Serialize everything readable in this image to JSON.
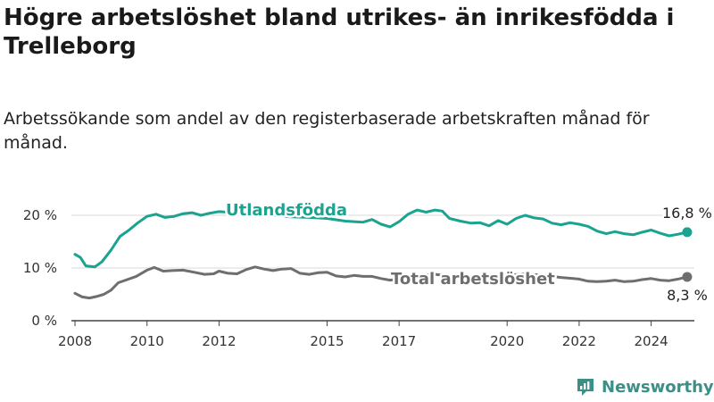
{
  "brand": {
    "name": "Newsworthy",
    "logo_icon": "newsworthy-logo-icon"
  },
  "chart_data": {
    "type": "line",
    "title": "Högre arbetslöshet bland utrikes- än inrikesfödda i Trelleborg",
    "subtitle": "Arbetssökande som andel av den registerbaserade arbetskraften månad för månad.",
    "x_ticks": [
      2008,
      2010,
      2012,
      2015,
      2017,
      2020,
      2022,
      2024
    ],
    "y_ticks": [
      {
        "value": 0,
        "label": "0 %"
      },
      {
        "value": 10,
        "label": "10 %"
      },
      {
        "value": 20,
        "label": "20 %"
      }
    ],
    "xlim": [
      2007.9,
      2025.2
    ],
    "ylim": [
      0,
      20
    ],
    "grid": "horizontal",
    "series": [
      {
        "name": "Utlandsfödda",
        "color": "#1aa38f",
        "end_label": "16,8 %",
        "points": [
          [
            2008.0,
            12.6
          ],
          [
            2008.15,
            12.0
          ],
          [
            2008.3,
            10.4
          ],
          [
            2008.55,
            10.2
          ],
          [
            2008.75,
            11.2
          ],
          [
            2009.0,
            13.4
          ],
          [
            2009.25,
            16.0
          ],
          [
            2009.5,
            17.2
          ],
          [
            2009.75,
            18.6
          ],
          [
            2010.0,
            19.8
          ],
          [
            2010.25,
            20.2
          ],
          [
            2010.5,
            19.6
          ],
          [
            2010.75,
            19.8
          ],
          [
            2011.0,
            20.3
          ],
          [
            2011.25,
            20.5
          ],
          [
            2011.5,
            20.0
          ],
          [
            2011.75,
            20.4
          ],
          [
            2012.0,
            20.7
          ],
          [
            2012.5,
            20.5
          ],
          [
            2013.0,
            20.3
          ],
          [
            2013.5,
            20.0
          ],
          [
            2014.0,
            19.7
          ],
          [
            2014.5,
            19.6
          ],
          [
            2015.0,
            19.4
          ],
          [
            2015.5,
            18.9
          ],
          [
            2016.0,
            18.7
          ],
          [
            2016.25,
            19.2
          ],
          [
            2016.5,
            18.3
          ],
          [
            2016.75,
            17.8
          ],
          [
            2017.0,
            18.8
          ],
          [
            2017.25,
            20.2
          ],
          [
            2017.5,
            21.0
          ],
          [
            2017.75,
            20.6
          ],
          [
            2018.0,
            21.0
          ],
          [
            2018.2,
            20.8
          ],
          [
            2018.4,
            19.4
          ],
          [
            2018.7,
            18.9
          ],
          [
            2019.0,
            18.5
          ],
          [
            2019.25,
            18.6
          ],
          [
            2019.5,
            18.0
          ],
          [
            2019.75,
            19.0
          ],
          [
            2020.0,
            18.3
          ],
          [
            2020.25,
            19.4
          ],
          [
            2020.5,
            20.0
          ],
          [
            2020.75,
            19.5
          ],
          [
            2021.0,
            19.3
          ],
          [
            2021.25,
            18.5
          ],
          [
            2021.5,
            18.2
          ],
          [
            2021.75,
            18.6
          ],
          [
            2022.0,
            18.3
          ],
          [
            2022.25,
            17.9
          ],
          [
            2022.5,
            17.0
          ],
          [
            2022.75,
            16.5
          ],
          [
            2023.0,
            16.9
          ],
          [
            2023.25,
            16.5
          ],
          [
            2023.5,
            16.3
          ],
          [
            2023.75,
            16.8
          ],
          [
            2024.0,
            17.2
          ],
          [
            2024.25,
            16.6
          ],
          [
            2024.5,
            16.1
          ],
          [
            2024.75,
            16.4
          ],
          [
            2025.0,
            16.8
          ]
        ]
      },
      {
        "name": "Total arbetslöshet",
        "color": "#6e6e6e",
        "end_label": "8,3 %",
        "points": [
          [
            2008.0,
            5.2
          ],
          [
            2008.2,
            4.5
          ],
          [
            2008.4,
            4.3
          ],
          [
            2008.6,
            4.6
          ],
          [
            2008.8,
            5.0
          ],
          [
            2009.0,
            5.8
          ],
          [
            2009.2,
            7.2
          ],
          [
            2009.45,
            7.8
          ],
          [
            2009.7,
            8.4
          ],
          [
            2010.0,
            9.6
          ],
          [
            2010.2,
            10.1
          ],
          [
            2010.45,
            9.4
          ],
          [
            2010.7,
            9.5
          ],
          [
            2011.0,
            9.6
          ],
          [
            2011.3,
            9.2
          ],
          [
            2011.6,
            8.8
          ],
          [
            2011.85,
            8.9
          ],
          [
            2012.0,
            9.4
          ],
          [
            2012.25,
            9.0
          ],
          [
            2012.5,
            8.9
          ],
          [
            2012.75,
            9.7
          ],
          [
            2013.0,
            10.2
          ],
          [
            2013.25,
            9.8
          ],
          [
            2013.5,
            9.5
          ],
          [
            2013.75,
            9.8
          ],
          [
            2014.0,
            9.9
          ],
          [
            2014.25,
            9.0
          ],
          [
            2014.5,
            8.8
          ],
          [
            2014.75,
            9.1
          ],
          [
            2015.0,
            9.2
          ],
          [
            2015.25,
            8.5
          ],
          [
            2015.5,
            8.3
          ],
          [
            2015.75,
            8.6
          ],
          [
            2016.0,
            8.4
          ],
          [
            2016.25,
            8.4
          ],
          [
            2016.5,
            8.0
          ],
          [
            2016.75,
            7.7
          ],
          [
            2017.0,
            7.9
          ],
          [
            2017.5,
            8.6
          ],
          [
            2018.0,
            8.8
          ],
          [
            2018.5,
            8.4
          ],
          [
            2019.0,
            8.1
          ],
          [
            2019.5,
            8.0
          ],
          [
            2020.0,
            8.6
          ],
          [
            2020.5,
            8.9
          ],
          [
            2021.0,
            8.6
          ],
          [
            2021.5,
            8.2
          ],
          [
            2022.0,
            7.9
          ],
          [
            2022.25,
            7.5
          ],
          [
            2022.5,
            7.4
          ],
          [
            2022.75,
            7.5
          ],
          [
            2023.0,
            7.7
          ],
          [
            2023.25,
            7.4
          ],
          [
            2023.5,
            7.5
          ],
          [
            2023.75,
            7.8
          ],
          [
            2024.0,
            8.0
          ],
          [
            2024.25,
            7.7
          ],
          [
            2024.5,
            7.6
          ],
          [
            2024.75,
            7.9
          ],
          [
            2025.0,
            8.3
          ]
        ]
      }
    ]
  }
}
